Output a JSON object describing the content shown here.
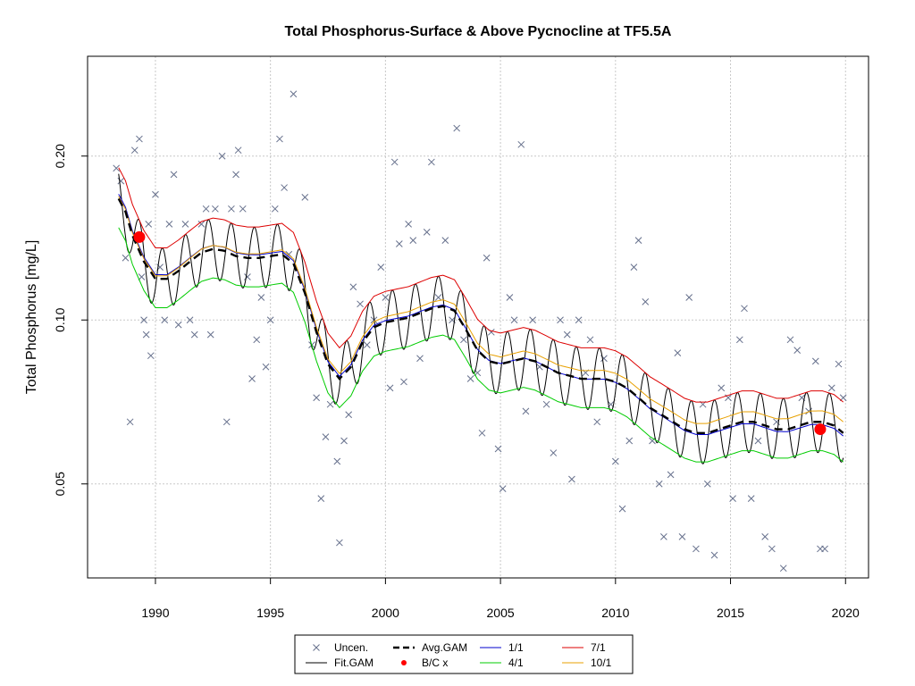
{
  "chart_data": {
    "type": "line",
    "title": "Total Phosphorus-Surface & Above Pycnocline at TF5.5A",
    "xlabel": "",
    "ylabel": "Total Phosphorus [mg/L]",
    "y_scale": "log",
    "xlim": [
      1987.05,
      2021.0
    ],
    "ylim": [
      0.0336,
      0.305
    ],
    "x_ticks": [
      1990,
      1995,
      2000,
      2005,
      2010,
      2015,
      2020
    ],
    "y_ticks": [
      0.05,
      0.1,
      0.2
    ],
    "y_tick_labels": [
      "0.05",
      "0.10",
      "0.20"
    ],
    "grid": true,
    "legend_position": "bottom-center",
    "legend": [
      {
        "label": "Uncen.",
        "symbol": "x",
        "color": "#66708c"
      },
      {
        "label": "Fit.GAM",
        "symbol": "line",
        "color": "#000000"
      },
      {
        "label": "Avg.GAM",
        "symbol": "dashed-line",
        "color": "#000000"
      },
      {
        "label": "B/C x",
        "symbol": "dot",
        "color": "#ff0000"
      },
      {
        "label": "1/1",
        "symbol": "line",
        "color": "#0000cd"
      },
      {
        "label": "4/1",
        "symbol": "line",
        "color": "#00cc00"
      },
      {
        "label": "7/1",
        "symbol": "line",
        "color": "#dd0000"
      },
      {
        "label": "10/1",
        "symbol": "line",
        "color": "#e8a000"
      }
    ],
    "colors": {
      "uncen": "#66708c",
      "fit": "#000000",
      "avg": "#000000",
      "bc": "#ff0000",
      "d1_1": "#0000cd",
      "d4_1": "#00cc00",
      "d7_1": "#dd0000",
      "d10_1": "#e8a000",
      "grid": "#c8c8c8"
    },
    "avg_gam": [
      [
        1988.4,
        0.167
      ],
      [
        1988.7,
        0.158
      ],
      [
        1989.0,
        0.143
      ],
      [
        1989.5,
        0.128
      ],
      [
        1990.0,
        0.119
      ],
      [
        1990.5,
        0.119
      ],
      [
        1991.0,
        0.123
      ],
      [
        1991.5,
        0.128
      ],
      [
        1992.0,
        0.133
      ],
      [
        1992.5,
        0.135
      ],
      [
        1993.0,
        0.134
      ],
      [
        1993.5,
        0.131
      ],
      [
        1994.0,
        0.13
      ],
      [
        1994.5,
        0.13
      ],
      [
        1995.0,
        0.131
      ],
      [
        1995.5,
        0.132
      ],
      [
        1996.0,
        0.127
      ],
      [
        1996.5,
        0.112
      ],
      [
        1997.0,
        0.095
      ],
      [
        1997.5,
        0.083
      ],
      [
        1998.0,
        0.078
      ],
      [
        1998.5,
        0.082
      ],
      [
        1999.0,
        0.091
      ],
      [
        1999.5,
        0.097
      ],
      [
        2000.0,
        0.099
      ],
      [
        2000.5,
        0.1
      ],
      [
        2001.0,
        0.101
      ],
      [
        2001.5,
        0.103
      ],
      [
        2002.0,
        0.105
      ],
      [
        2002.5,
        0.106
      ],
      [
        2003.0,
        0.104
      ],
      [
        2003.5,
        0.096
      ],
      [
        2004.0,
        0.088
      ],
      [
        2004.5,
        0.084
      ],
      [
        2005.0,
        0.083
      ],
      [
        2005.5,
        0.084
      ],
      [
        2006.0,
        0.085
      ],
      [
        2006.5,
        0.084
      ],
      [
        2007.0,
        0.082
      ],
      [
        2007.5,
        0.08
      ],
      [
        2008.0,
        0.079
      ],
      [
        2008.5,
        0.078
      ],
      [
        2009.0,
        0.078
      ],
      [
        2009.5,
        0.078
      ],
      [
        2010.0,
        0.077
      ],
      [
        2010.5,
        0.075
      ],
      [
        2011.0,
        0.072
      ],
      [
        2011.5,
        0.069
      ],
      [
        2012.0,
        0.067
      ],
      [
        2012.5,
        0.065
      ],
      [
        2013.0,
        0.063
      ],
      [
        2013.5,
        0.062
      ],
      [
        2014.0,
        0.062
      ],
      [
        2014.5,
        0.063
      ],
      [
        2015.0,
        0.064
      ],
      [
        2015.5,
        0.065
      ],
      [
        2016.0,
        0.065
      ],
      [
        2016.5,
        0.064
      ],
      [
        2017.0,
        0.063
      ],
      [
        2017.5,
        0.063
      ],
      [
        2018.0,
        0.064
      ],
      [
        2018.5,
        0.065
      ],
      [
        2019.0,
        0.065
      ],
      [
        2019.5,
        0.064
      ],
      [
        2019.9,
        0.062
      ]
    ],
    "series_offsets": [
      {
        "name": "1/1",
        "factor": 1.02,
        "trend": -0.001
      },
      {
        "name": "4/1",
        "factor": 0.885,
        "trend": 0
      },
      {
        "name": "7/1",
        "factor": 1.14,
        "trend": 0
      },
      {
        "name": "10/1",
        "factor": 1.01,
        "trend": 0.0012
      }
    ],
    "fit_gam_seasonal_amplitude": 0.13,
    "bc_points": [
      [
        1989.3,
        0.142
      ],
      [
        2018.9,
        0.063
      ]
    ],
    "uncen_points": [
      [
        1988.3,
        0.19
      ],
      [
        1988.5,
        0.18
      ],
      [
        1988.7,
        0.13
      ],
      [
        1988.9,
        0.065
      ],
      [
        1989.1,
        0.205
      ],
      [
        1989.3,
        0.215
      ],
      [
        1989.4,
        0.12
      ],
      [
        1989.5,
        0.1
      ],
      [
        1989.6,
        0.094
      ],
      [
        1989.7,
        0.15
      ],
      [
        1989.8,
        0.086
      ],
      [
        1990.0,
        0.17
      ],
      [
        1990.2,
        0.125
      ],
      [
        1990.4,
        0.1
      ],
      [
        1990.6,
        0.15
      ],
      [
        1990.8,
        0.185
      ],
      [
        1991.0,
        0.098
      ],
      [
        1991.3,
        0.15
      ],
      [
        1991.5,
        0.1
      ],
      [
        1991.7,
        0.094
      ],
      [
        1992.0,
        0.15
      ],
      [
        1992.2,
        0.16
      ],
      [
        1992.4,
        0.094
      ],
      [
        1992.6,
        0.16
      ],
      [
        1992.9,
        0.2
      ],
      [
        1993.1,
        0.065
      ],
      [
        1993.3,
        0.16
      ],
      [
        1993.5,
        0.185
      ],
      [
        1993.6,
        0.205
      ],
      [
        1993.8,
        0.16
      ],
      [
        1994.0,
        0.12
      ],
      [
        1994.2,
        0.078
      ],
      [
        1994.4,
        0.092
      ],
      [
        1994.6,
        0.11
      ],
      [
        1994.8,
        0.082
      ],
      [
        1995.0,
        0.1
      ],
      [
        1995.2,
        0.16
      ],
      [
        1995.4,
        0.215
      ],
      [
        1995.6,
        0.175
      ],
      [
        1995.8,
        0.132
      ],
      [
        1996.0,
        0.26
      ],
      [
        1996.5,
        0.168
      ],
      [
        1996.8,
        0.09
      ],
      [
        1997.0,
        0.072
      ],
      [
        1997.2,
        0.047
      ],
      [
        1997.4,
        0.061
      ],
      [
        1997.6,
        0.07
      ],
      [
        1997.9,
        0.055
      ],
      [
        1998.0,
        0.039
      ],
      [
        1998.2,
        0.06
      ],
      [
        1998.4,
        0.067
      ],
      [
        1998.6,
        0.115
      ],
      [
        1998.9,
        0.107
      ],
      [
        1999.2,
        0.09
      ],
      [
        1999.5,
        0.1
      ],
      [
        1999.8,
        0.125
      ],
      [
        2000.0,
        0.11
      ],
      [
        2000.2,
        0.075
      ],
      [
        2000.4,
        0.195
      ],
      [
        2000.6,
        0.138
      ],
      [
        2000.8,
        0.077
      ],
      [
        2001.0,
        0.15
      ],
      [
        2001.2,
        0.14
      ],
      [
        2001.5,
        0.085
      ],
      [
        2001.8,
        0.145
      ],
      [
        2002.0,
        0.195
      ],
      [
        2002.3,
        0.11
      ],
      [
        2002.6,
        0.14
      ],
      [
        2002.9,
        0.1
      ],
      [
        2003.1,
        0.225
      ],
      [
        2003.4,
        0.092
      ],
      [
        2003.7,
        0.078
      ],
      [
        2004.0,
        0.08
      ],
      [
        2004.2,
        0.062
      ],
      [
        2004.4,
        0.13
      ],
      [
        2004.6,
        0.095
      ],
      [
        2004.9,
        0.058
      ],
      [
        2005.1,
        0.049
      ],
      [
        2005.4,
        0.11
      ],
      [
        2005.6,
        0.1
      ],
      [
        2005.9,
        0.21
      ],
      [
        2006.1,
        0.068
      ],
      [
        2006.4,
        0.1
      ],
      [
        2006.7,
        0.082
      ],
      [
        2007.0,
        0.07
      ],
      [
        2007.3,
        0.057
      ],
      [
        2007.6,
        0.1
      ],
      [
        2007.9,
        0.094
      ],
      [
        2008.1,
        0.051
      ],
      [
        2008.4,
        0.1
      ],
      [
        2008.7,
        0.08
      ],
      [
        2008.9,
        0.092
      ],
      [
        2009.2,
        0.065
      ],
      [
        2009.5,
        0.085
      ],
      [
        2009.8,
        0.07
      ],
      [
        2010.0,
        0.055
      ],
      [
        2010.3,
        0.045
      ],
      [
        2010.6,
        0.06
      ],
      [
        2010.8,
        0.125
      ],
      [
        2011.0,
        0.14
      ],
      [
        2011.3,
        0.108
      ],
      [
        2011.6,
        0.06
      ],
      [
        2011.9,
        0.05
      ],
      [
        2012.1,
        0.04
      ],
      [
        2012.4,
        0.052
      ],
      [
        2012.7,
        0.087
      ],
      [
        2012.9,
        0.04
      ],
      [
        2013.2,
        0.11
      ],
      [
        2013.5,
        0.038
      ],
      [
        2013.8,
        0.07
      ],
      [
        2014.0,
        0.05
      ],
      [
        2014.3,
        0.037
      ],
      [
        2014.6,
        0.075
      ],
      [
        2014.9,
        0.072
      ],
      [
        2015.1,
        0.047
      ],
      [
        2015.4,
        0.092
      ],
      [
        2015.6,
        0.105
      ],
      [
        2015.9,
        0.047
      ],
      [
        2016.2,
        0.06
      ],
      [
        2016.5,
        0.04
      ],
      [
        2016.8,
        0.038
      ],
      [
        2017.0,
        0.065
      ],
      [
        2017.3,
        0.035
      ],
      [
        2017.6,
        0.092
      ],
      [
        2017.9,
        0.088
      ],
      [
        2018.1,
        0.072
      ],
      [
        2018.4,
        0.068
      ],
      [
        2018.7,
        0.084
      ],
      [
        2018.9,
        0.038
      ],
      [
        2019.1,
        0.038
      ],
      [
        2019.4,
        0.075
      ],
      [
        2019.7,
        0.083
      ],
      [
        2019.9,
        0.072
      ]
    ]
  }
}
